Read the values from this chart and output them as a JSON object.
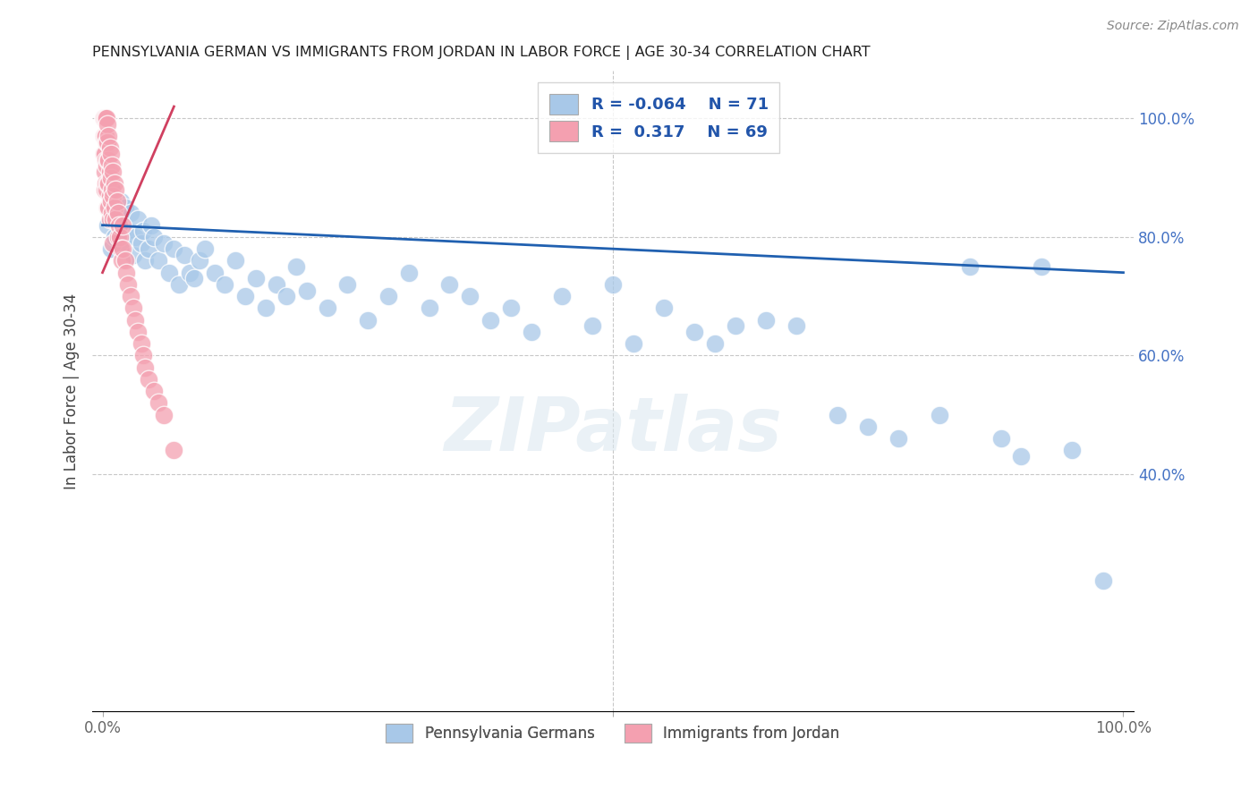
{
  "title": "PENNSYLVANIA GERMAN VS IMMIGRANTS FROM JORDAN IN LABOR FORCE | AGE 30-34 CORRELATION CHART",
  "source": "Source: ZipAtlas.com",
  "ylabel": "In Labor Force | Age 30-34",
  "watermark": "ZIPatlas",
  "legend_blue_label": "Pennsylvania Germans",
  "legend_pink_label": "Immigrants from Jordan",
  "blue_r_text": "R = -0.064",
  "blue_n_text": "N = 71",
  "pink_r_text": "R =  0.317",
  "pink_n_text": "N = 69",
  "blue_fill": "#a8c8e8",
  "blue_edge": "#7aaed4",
  "pink_fill": "#f4a0b0",
  "pink_edge": "#e87898",
  "blue_line_color": "#2060b0",
  "pink_line_color": "#d04060",
  "grid_color": "#c8c8c8",
  "background_color": "#ffffff",
  "right_tick_color": "#4472c4",
  "blue_scatter_x": [
    0.005,
    0.008,
    0.009,
    0.01,
    0.012,
    0.015,
    0.018,
    0.02,
    0.022,
    0.025,
    0.028,
    0.03,
    0.032,
    0.035,
    0.038,
    0.04,
    0.042,
    0.045,
    0.048,
    0.05,
    0.055,
    0.06,
    0.065,
    0.07,
    0.075,
    0.08,
    0.085,
    0.09,
    0.095,
    0.1,
    0.11,
    0.12,
    0.13,
    0.14,
    0.15,
    0.16,
    0.17,
    0.18,
    0.19,
    0.2,
    0.22,
    0.24,
    0.26,
    0.28,
    0.3,
    0.32,
    0.34,
    0.36,
    0.38,
    0.4,
    0.42,
    0.45,
    0.48,
    0.5,
    0.52,
    0.55,
    0.58,
    0.6,
    0.62,
    0.65,
    0.68,
    0.72,
    0.75,
    0.78,
    0.82,
    0.85,
    0.88,
    0.9,
    0.92,
    0.95,
    0.98
  ],
  "blue_scatter_y": [
    0.82,
    0.78,
    0.88,
    0.84,
    0.8,
    0.83,
    0.86,
    0.79,
    0.85,
    0.81,
    0.84,
    0.77,
    0.8,
    0.83,
    0.79,
    0.81,
    0.76,
    0.78,
    0.82,
    0.8,
    0.76,
    0.79,
    0.74,
    0.78,
    0.72,
    0.77,
    0.74,
    0.73,
    0.76,
    0.78,
    0.74,
    0.72,
    0.76,
    0.7,
    0.73,
    0.68,
    0.72,
    0.7,
    0.75,
    0.71,
    0.68,
    0.72,
    0.66,
    0.7,
    0.74,
    0.68,
    0.72,
    0.7,
    0.66,
    0.68,
    0.64,
    0.7,
    0.65,
    0.72,
    0.62,
    0.68,
    0.64,
    0.62,
    0.65,
    0.66,
    0.65,
    0.5,
    0.48,
    0.46,
    0.5,
    0.75,
    0.46,
    0.43,
    0.75,
    0.44,
    0.22
  ],
  "pink_scatter_x": [
    0.001,
    0.001,
    0.001,
    0.001,
    0.001,
    0.002,
    0.002,
    0.002,
    0.002,
    0.002,
    0.003,
    0.003,
    0.003,
    0.003,
    0.004,
    0.004,
    0.004,
    0.004,
    0.005,
    0.005,
    0.005,
    0.005,
    0.005,
    0.006,
    0.006,
    0.006,
    0.006,
    0.007,
    0.007,
    0.007,
    0.007,
    0.008,
    0.008,
    0.008,
    0.009,
    0.009,
    0.009,
    0.01,
    0.01,
    0.01,
    0.01,
    0.012,
    0.012,
    0.013,
    0.013,
    0.014,
    0.015,
    0.015,
    0.016,
    0.017,
    0.018,
    0.019,
    0.02,
    0.02,
    0.022,
    0.023,
    0.025,
    0.028,
    0.03,
    0.032,
    0.035,
    0.038,
    0.04,
    0.042,
    0.045,
    0.05,
    0.055,
    0.06,
    0.07
  ],
  "pink_scatter_y": [
    1.0,
    1.0,
    1.0,
    0.97,
    0.94,
    1.0,
    0.97,
    0.94,
    0.91,
    0.88,
    1.0,
    0.97,
    0.93,
    0.89,
    1.0,
    0.96,
    0.92,
    0.88,
    0.99,
    0.96,
    0.93,
    0.89,
    0.85,
    0.97,
    0.93,
    0.89,
    0.85,
    0.95,
    0.91,
    0.87,
    0.83,
    0.94,
    0.9,
    0.86,
    0.92,
    0.88,
    0.84,
    0.91,
    0.87,
    0.83,
    0.79,
    0.89,
    0.85,
    0.88,
    0.83,
    0.86,
    0.84,
    0.8,
    0.82,
    0.8,
    0.78,
    0.76,
    0.82,
    0.78,
    0.76,
    0.74,
    0.72,
    0.7,
    0.68,
    0.66,
    0.64,
    0.62,
    0.6,
    0.58,
    0.56,
    0.54,
    0.52,
    0.5,
    0.44
  ]
}
